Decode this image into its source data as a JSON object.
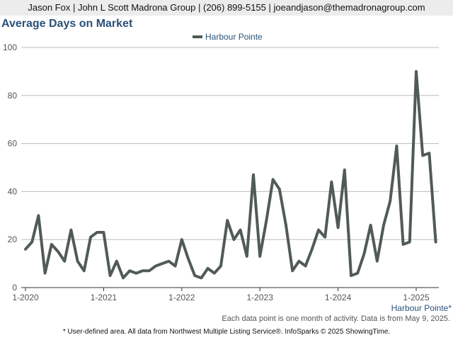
{
  "header": {
    "text": "Jason Fox | John L Scott Madrona Group | (206) 899-5155 | joeandjason@themadronagroup.com"
  },
  "footer": {
    "area_label": "Harbour Pointe*",
    "note": "Each data point is one month of activity. Data is from May 9, 2025.",
    "source": "* User-defined area. All data from Northwest Multiple Listing Service®. InfoSparks © 2025 ShowingTime."
  },
  "colors": {
    "line": "#515b56",
    "title": "#2b5278",
    "grid": "#bbbbbb"
  },
  "chart_data": {
    "type": "line",
    "title": "Average Days on Market",
    "xlabel": "",
    "ylabel": "",
    "ylim": [
      0,
      100
    ],
    "yticks": [
      0,
      20,
      40,
      60,
      80,
      100
    ],
    "xticks": [
      "1-2020",
      "1-2021",
      "1-2022",
      "1-2023",
      "1-2024",
      "1-2025"
    ],
    "grid": true,
    "legend_position": "top-center",
    "series": [
      {
        "name": "Harbour Pointe",
        "color": "#515b56",
        "start": "1-2020",
        "values": [
          16,
          19,
          30,
          6,
          18,
          15,
          11,
          24,
          11,
          7,
          21,
          23,
          23,
          5,
          11,
          4,
          7,
          6,
          7,
          7,
          9,
          10,
          11,
          9,
          20,
          12,
          5,
          4,
          8,
          6,
          9,
          28,
          20,
          24,
          13,
          47,
          13,
          28,
          45,
          41,
          26,
          7,
          11,
          9,
          16,
          24,
          21,
          44,
          25,
          49,
          5,
          6,
          14,
          26,
          11,
          26,
          36,
          59,
          18,
          19,
          90,
          55,
          56,
          19
        ]
      }
    ]
  }
}
